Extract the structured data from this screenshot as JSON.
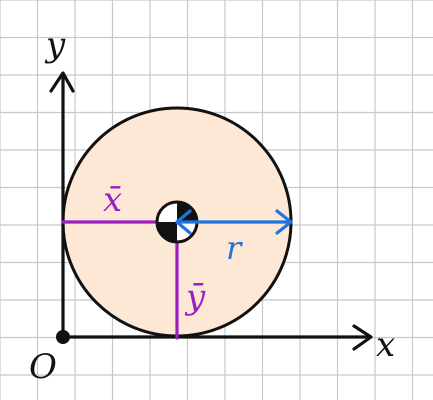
{
  "labels": {
    "y_axis": "y",
    "x_axis": "x",
    "origin": "O",
    "x_bar": "x̄",
    "y_bar": "ȳ",
    "radius": "r"
  },
  "colors": {
    "background": "#ffffff",
    "grid": "#c8c8c8",
    "axis": "#111111",
    "disk_fill": "#fde8d6",
    "disk_outline": "#111111",
    "centroid_lines": "#9b1fc0",
    "radius_arrow": "#1f74e0",
    "centroid_marker_dark": "#111111",
    "centroid_marker_light": "#ffffff"
  },
  "icons": {
    "centroid_marker": "centroid-symbol-icon",
    "origin_marker": "origin-dot-icon"
  }
}
